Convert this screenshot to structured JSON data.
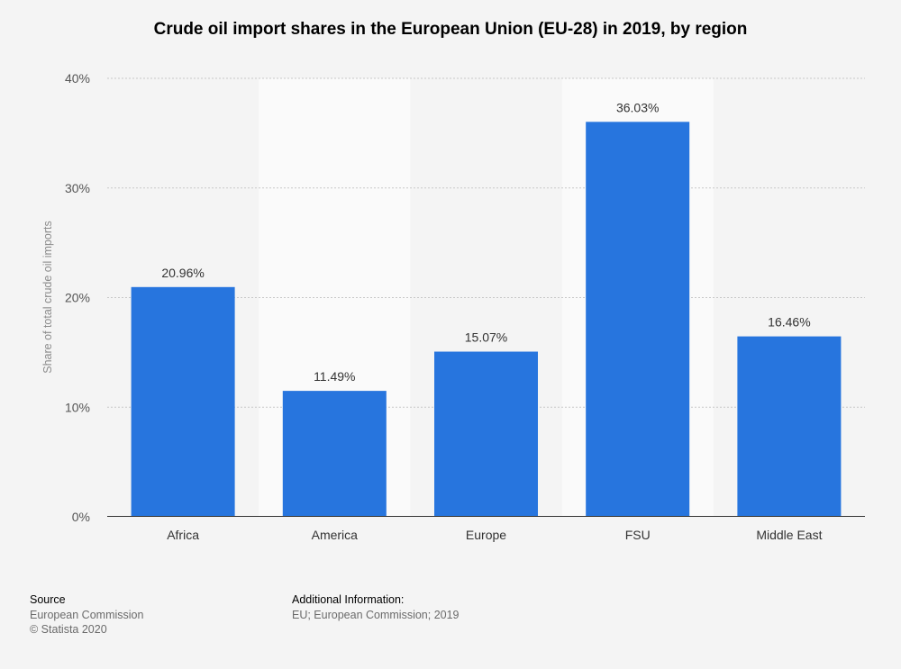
{
  "chart_data": {
    "type": "bar",
    "title": "Crude oil import shares in the European Union (EU-28) in 2019, by region",
    "xlabel": "",
    "ylabel": "Share of total crude oil imports",
    "categories": [
      "Africa",
      "America",
      "Europe",
      "FSU",
      "Middle East"
    ],
    "values": [
      20.96,
      11.49,
      15.07,
      36.03,
      16.46
    ],
    "value_labels": [
      "20.96%",
      "11.49%",
      "15.07%",
      "36.03%",
      "16.46%"
    ],
    "ylim": [
      0,
      40
    ],
    "yticks": [
      0,
      10,
      20,
      30,
      40
    ],
    "ytick_labels": [
      "0%",
      "10%",
      "20%",
      "30%",
      "40%"
    ],
    "grid": true,
    "bar_color": "#2775de"
  },
  "footer": {
    "source_heading": "Source",
    "source_name": "European Commission",
    "copyright": "© Statista 2020",
    "info_heading": "Additional Information:",
    "info_text": "EU; European Commission; 2019"
  }
}
